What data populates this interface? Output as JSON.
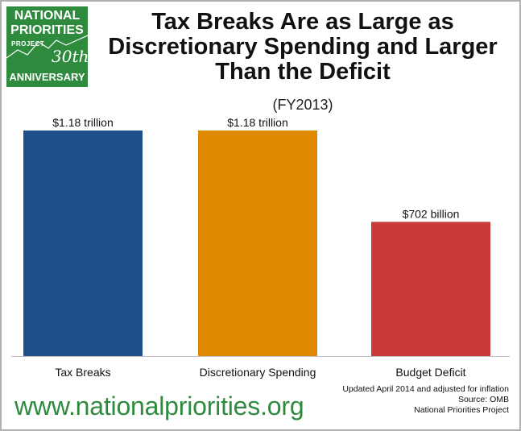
{
  "logo": {
    "line1": "NATIONAL",
    "line2": "PRIORITIES",
    "line3": "PROJECT",
    "anniv_num": "30th",
    "line4": "ANNIVERSARY"
  },
  "footer": {
    "url": "www.nationalpriorities.org",
    "note_lines": [
      "Updated April 2014 and adjusted for inflation",
      "Source: OMB",
      "National Priorities Project"
    ]
  },
  "colors": {
    "logo_bg": "#2e8b3e",
    "url_text": "#2e8b3e"
  },
  "chart_data": {
    "type": "bar",
    "title": "Tax Breaks Are as Large as Discretionary Spending and Larger Than the Deficit",
    "subtitle": "(FY2013)",
    "categories": [
      "Tax Breaks",
      "Discretionary Spending",
      "Budget Deficit"
    ],
    "values": [
      1180,
      1180,
      702
    ],
    "units": "billion",
    "data_labels": [
      "$1.18 trillion",
      "$1.18 trillion",
      "$702 billion"
    ],
    "colors": [
      "#1f4e8c",
      "#e08a00",
      "#c93a38"
    ],
    "ylim": [
      0,
      1180
    ],
    "grid": false,
    "xlabel": "",
    "ylabel": ""
  }
}
